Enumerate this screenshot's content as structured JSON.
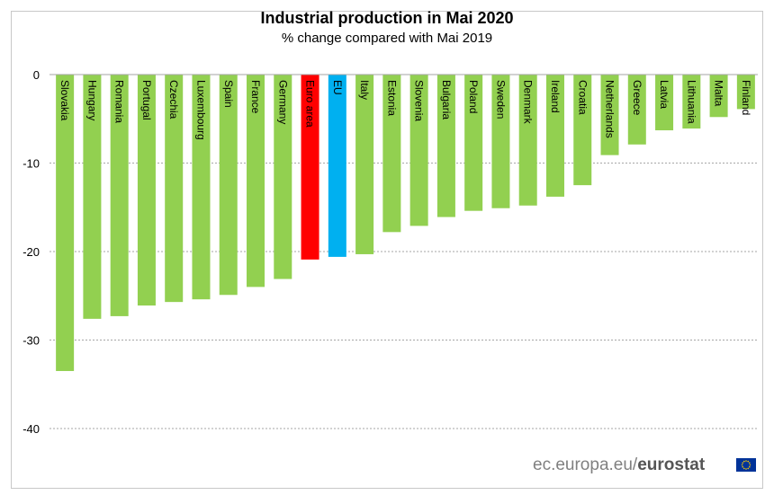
{
  "chart_data": {
    "type": "bar",
    "title": "Industrial production in Mai 2020",
    "subtitle": "% change compared with Mai 2019",
    "categories": [
      "Slovakia",
      "Hungary",
      "Romania",
      "Portugal",
      "Czechia",
      "Luxembourg",
      "Spain",
      "France",
      "Germany",
      "Euro area",
      "EU",
      "Italy",
      "Estonia",
      "Slovenia",
      "Bulgaria",
      "Poland",
      "Sweden",
      "Denmark",
      "Ireland",
      "Croatia",
      "Netherlands",
      "Greece",
      "Latvia",
      "Lithuania",
      "Malta",
      "Finland"
    ],
    "values": [
      -33.5,
      -27.6,
      -27.3,
      -26.1,
      -25.7,
      -25.4,
      -24.9,
      -24.0,
      -23.1,
      -20.9,
      -20.6,
      -20.3,
      -17.8,
      -17.1,
      -16.1,
      -15.4,
      -15.1,
      -14.8,
      -13.8,
      -12.5,
      -9.1,
      -7.9,
      -6.3,
      -6.1,
      -4.8,
      -3.9
    ],
    "ylim": [
      -45,
      0
    ],
    "yticks": [
      0,
      -10,
      -20,
      -30,
      -40
    ],
    "grid": true,
    "colors": {
      "default": "#92d050",
      "Euro area": "#ff0000",
      "EU": "#00b0f0"
    }
  },
  "footer": {
    "brand_prefix": "ec.europa.eu/",
    "brand_bold": "eurostat"
  }
}
